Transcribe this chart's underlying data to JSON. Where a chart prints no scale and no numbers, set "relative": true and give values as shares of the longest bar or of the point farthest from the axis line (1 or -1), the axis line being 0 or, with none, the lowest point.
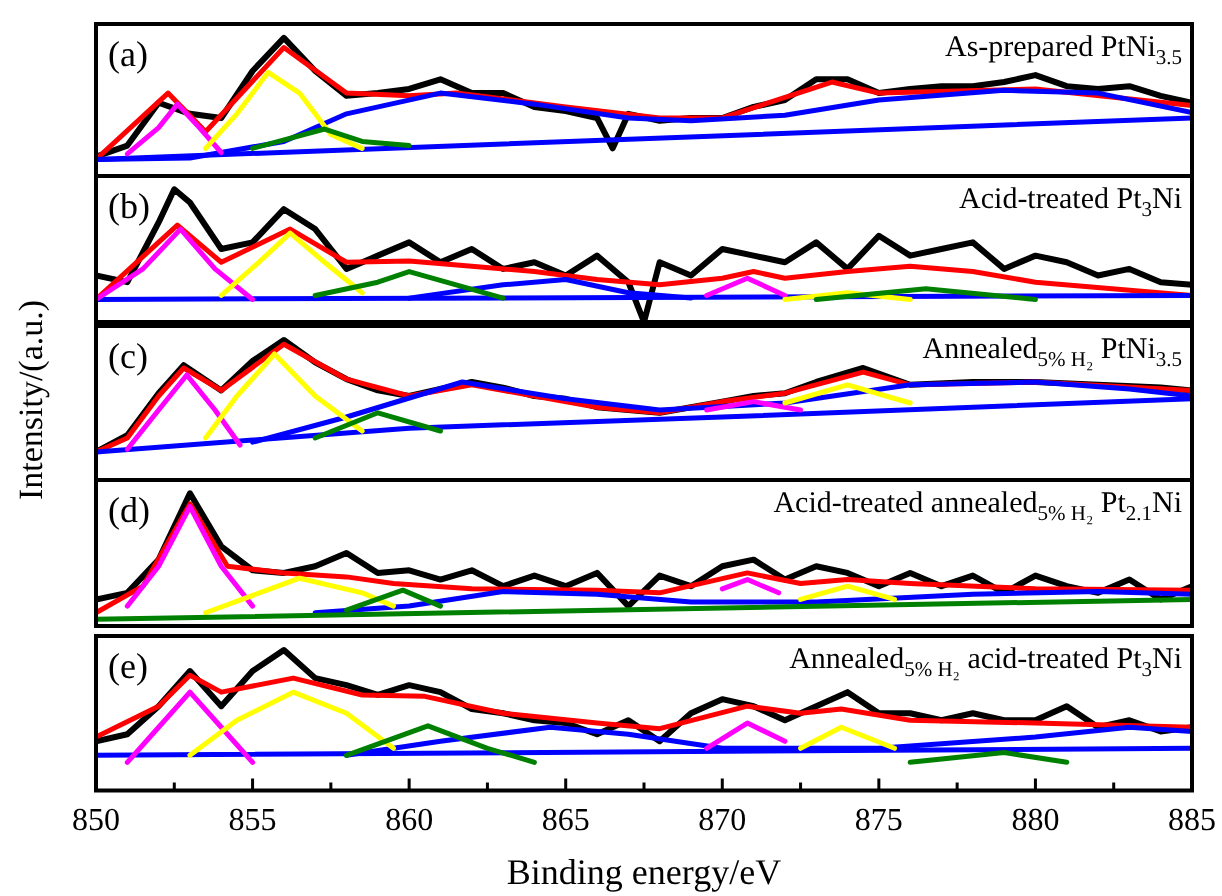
{
  "chart_data": [
    {
      "type": "line",
      "relative": true,
      "xlim": [
        850,
        885
      ],
      "tick_labels": false,
      "annotations": [
        "(a)",
        "As-prepared PtNi$_{3.5}$"
      ],
      "series": [
        {
          "color": "#000000",
          "x": [
            850,
            851,
            852,
            853,
            854,
            855,
            856,
            857,
            858,
            859,
            860,
            861,
            862,
            863,
            864,
            865,
            866,
            866.5,
            867,
            868,
            869,
            870,
            871,
            872,
            873,
            874,
            875,
            876,
            877,
            878,
            879,
            880,
            881,
            882,
            883,
            884,
            885
          ],
          "values": [
            0.14,
            0.22,
            0.53,
            0.45,
            0.42,
            0.76,
            1,
            0.76,
            0.58,
            0.6,
            0.63,
            0.7,
            0.6,
            0.6,
            0.5,
            0.47,
            0.42,
            0.2,
            0.45,
            0.4,
            0.42,
            0.42,
            0.5,
            0.55,
            0.7,
            0.7,
            0.6,
            0.63,
            0.65,
            0.65,
            0.68,
            0.73,
            0.65,
            0.63,
            0.65,
            0.58,
            0.53
          ]
        },
        {
          "color": "#ff0000",
          "x": [
            850,
            852.3,
            853.5,
            856,
            858,
            860,
            861.5,
            865,
            868,
            870,
            873.5,
            875,
            880,
            885
          ],
          "values": [
            0.12,
            0.6,
            0.32,
            0.93,
            0.6,
            0.58,
            0.6,
            0.5,
            0.42,
            0.42,
            0.68,
            0.6,
            0.63,
            0.51
          ]
        },
        {
          "color": "#0000ff",
          "x": [
            850,
            885
          ],
          "values": [
            0.12,
            0.42
          ]
        },
        {
          "color": "#0000ff",
          "x": [
            850,
            853,
            856,
            858,
            861,
            864,
            867,
            869,
            872,
            875,
            879,
            882,
            885
          ],
          "values": [
            0.12,
            0.13,
            0.25,
            0.45,
            0.6,
            0.52,
            0.42,
            0.4,
            0.44,
            0.55,
            0.62,
            0.6,
            0.46
          ]
        },
        {
          "color": "#ff00ff",
          "x": [
            851,
            852,
            852.6,
            853.3,
            854
          ],
          "values": [
            0.16,
            0.35,
            0.52,
            0.35,
            0.17
          ]
        },
        {
          "color": "#ffff00",
          "x": [
            853.5,
            854.5,
            855.5,
            856.5,
            857.5,
            858.5
          ],
          "values": [
            0.2,
            0.45,
            0.75,
            0.6,
            0.3,
            0.2
          ]
        },
        {
          "color": "#008000",
          "x": [
            855,
            857.3,
            858.5,
            860
          ],
          "values": [
            0.2,
            0.34,
            0.25,
            0.22
          ]
        }
      ]
    },
    {
      "type": "line",
      "relative": true,
      "xlim": [
        850,
        885
      ],
      "tick_labels": false,
      "annotations": [
        "(b)",
        "Acid-treated Pt$_{3}$Ni"
      ],
      "series": [
        {
          "color": "#000000",
          "x": [
            850,
            851,
            852,
            852.5,
            853,
            854,
            855,
            856,
            857,
            858,
            859,
            860,
            861,
            862,
            863,
            864,
            865,
            866,
            867,
            867.5,
            868,
            869,
            870,
            871,
            872,
            873,
            874,
            875,
            876,
            877,
            878,
            879,
            880,
            881,
            882,
            883,
            884,
            885
          ],
          "values": [
            0.35,
            0.3,
            0.75,
            1,
            0.9,
            0.55,
            0.6,
            0.85,
            0.7,
            0.4,
            0.5,
            0.6,
            0.45,
            0.55,
            0.4,
            0.45,
            0.35,
            0.5,
            0.3,
            0,
            0.45,
            0.35,
            0.55,
            0.5,
            0.45,
            0.6,
            0.4,
            0.65,
            0.5,
            0.55,
            0.6,
            0.4,
            0.5,
            0.45,
            0.35,
            0.4,
            0.3,
            0.28
          ]
        },
        {
          "color": "#ff0000",
          "x": [
            850,
            852.6,
            854,
            856.2,
            858,
            860,
            862,
            864,
            866,
            868,
            870,
            871,
            872,
            874,
            876,
            878,
            880,
            885
          ],
          "values": [
            0.17,
            0.73,
            0.45,
            0.7,
            0.45,
            0.46,
            0.42,
            0.38,
            0.32,
            0.28,
            0.33,
            0.38,
            0.33,
            0.38,
            0.42,
            0.38,
            0.3,
            0.2
          ]
        },
        {
          "color": "#0000ff",
          "x": [
            850,
            885
          ],
          "values": [
            0.17,
            0.2
          ]
        },
        {
          "color": "#0000ff",
          "x": [
            860,
            863,
            865,
            867,
            869
          ],
          "values": [
            0.18,
            0.28,
            0.32,
            0.22,
            0.18
          ]
        },
        {
          "color": "#ff00ff",
          "x": [
            850,
            851.5,
            852.7,
            853.8,
            855
          ],
          "values": [
            0.17,
            0.4,
            0.7,
            0.4,
            0.17
          ]
        },
        {
          "color": "#ff00ff",
          "x": [
            869.5,
            870.8,
            872
          ],
          "values": [
            0.2,
            0.33,
            0.2
          ]
        },
        {
          "color": "#ffff00",
          "x": [
            854,
            855.2,
            856.2,
            857.3,
            858.5
          ],
          "values": [
            0.2,
            0.45,
            0.67,
            0.45,
            0.22
          ]
        },
        {
          "color": "#ffff00",
          "x": [
            872,
            874,
            876
          ],
          "values": [
            0.17,
            0.22,
            0.17
          ]
        },
        {
          "color": "#008000",
          "x": [
            857,
            859,
            860,
            861.5,
            863
          ],
          "values": [
            0.2,
            0.3,
            0.38,
            0.28,
            0.18
          ]
        },
        {
          "color": "#008000",
          "x": [
            873,
            876.5,
            880
          ],
          "values": [
            0.17,
            0.25,
            0.17
          ]
        }
      ]
    },
    {
      "type": "line",
      "relative": true,
      "xlim": [
        850,
        885
      ],
      "tick_labels": false,
      "ylabel": "Intensity/(a.u.)",
      "annotations": [
        "(c)",
        "Annealed$_{5% H₂}$ PtNi$_{3.5}$"
      ],
      "series": [
        {
          "color": "#000000",
          "x": [
            850,
            851,
            852,
            852.8,
            854,
            855,
            856,
            857,
            858,
            859,
            860,
            861,
            862,
            863,
            864,
            865,
            866,
            867,
            868,
            869,
            870,
            871,
            872,
            873,
            874.5,
            876,
            878,
            880,
            882,
            884,
            885
          ],
          "values": [
            0.2,
            0.32,
            0.62,
            0.82,
            0.64,
            0.85,
            1,
            0.84,
            0.72,
            0.64,
            0.6,
            0.65,
            0.7,
            0.66,
            0.6,
            0.58,
            0.52,
            0.5,
            0.48,
            0.52,
            0.56,
            0.6,
            0.62,
            0.7,
            0.8,
            0.68,
            0.7,
            0.7,
            0.68,
            0.66,
            0.64
          ]
        },
        {
          "color": "#ff0000",
          "x": [
            850,
            851,
            852,
            852.8,
            854,
            856,
            858,
            860,
            862,
            864,
            866,
            868,
            870,
            872,
            874.5,
            876,
            880,
            885
          ],
          "values": [
            0.2,
            0.3,
            0.6,
            0.8,
            0.64,
            0.97,
            0.72,
            0.6,
            0.68,
            0.6,
            0.52,
            0.48,
            0.56,
            0.62,
            0.77,
            0.68,
            0.7,
            0.64
          ]
        },
        {
          "color": "#0000ff",
          "x": [
            850,
            860,
            870,
            885
          ],
          "values": [
            0.2,
            0.37,
            0.45,
            0.58
          ]
        },
        {
          "color": "#0000ff",
          "x": [
            855,
            858,
            861.7,
            865,
            868,
            872,
            876,
            880,
            883,
            885
          ],
          "values": [
            0.27,
            0.45,
            0.7,
            0.58,
            0.5,
            0.55,
            0.68,
            0.7,
            0.65,
            0.6
          ]
        },
        {
          "color": "#ff00ff",
          "x": [
            851,
            852,
            852.9,
            853.8,
            854.6
          ],
          "values": [
            0.22,
            0.5,
            0.75,
            0.5,
            0.25
          ]
        },
        {
          "color": "#ff00ff",
          "x": [
            869.5,
            871,
            872.5
          ],
          "values": [
            0.5,
            0.56,
            0.5
          ]
        },
        {
          "color": "#ffff00",
          "x": [
            853.5,
            854.5,
            855.7,
            857,
            858.5
          ],
          "values": [
            0.3,
            0.6,
            0.9,
            0.6,
            0.35
          ]
        },
        {
          "color": "#ffff00",
          "x": [
            872,
            874,
            876
          ],
          "values": [
            0.55,
            0.68,
            0.55
          ]
        },
        {
          "color": "#008000",
          "x": [
            857,
            859,
            861
          ],
          "values": [
            0.3,
            0.48,
            0.35
          ]
        }
      ]
    },
    {
      "type": "line",
      "relative": true,
      "xlim": [
        850,
        885
      ],
      "tick_labels": false,
      "annotations": [
        "(d)",
        "Acid-treated annealed$_{5% H₂}$ Pt$_{2.1}$Ni"
      ],
      "series": [
        {
          "color": "#000000",
          "x": [
            850,
            851,
            852,
            853,
            854,
            855,
            856,
            857,
            858,
            859,
            860,
            861,
            862,
            863,
            864,
            865,
            866,
            867,
            868,
            869,
            870,
            871,
            872,
            873,
            874,
            875,
            876,
            877,
            878,
            879,
            880,
            881,
            882,
            883,
            884,
            885
          ],
          "values": [
            0.2,
            0.25,
            0.5,
            1,
            0.6,
            0.42,
            0.4,
            0.45,
            0.55,
            0.4,
            0.42,
            0.35,
            0.42,
            0.3,
            0.38,
            0.3,
            0.4,
            0.15,
            0.38,
            0.3,
            0.45,
            0.5,
            0.35,
            0.45,
            0.4,
            0.3,
            0.4,
            0.3,
            0.38,
            0.25,
            0.38,
            0.3,
            0.25,
            0.35,
            0.2,
            0.3
          ]
        },
        {
          "color": "#ff0000",
          "x": [
            850,
            851.5,
            853,
            854.2,
            856,
            858,
            859.5,
            862,
            866,
            868,
            870.8,
            872.5,
            874,
            876,
            880,
            885
          ],
          "values": [
            0.1,
            0.3,
            0.92,
            0.45,
            0.4,
            0.37,
            0.32,
            0.28,
            0.27,
            0.25,
            0.4,
            0.32,
            0.35,
            0.32,
            0.28,
            0.27
          ]
        },
        {
          "color": "#0000ff",
          "x": [
            857,
            860,
            863,
            866,
            869,
            873,
            878,
            882,
            885
          ],
          "values": [
            0.1,
            0.15,
            0.26,
            0.24,
            0.18,
            0.18,
            0.24,
            0.26,
            0.24
          ]
        },
        {
          "color": "#ff00ff",
          "x": [
            851,
            852,
            853,
            854,
            855
          ],
          "values": [
            0.15,
            0.45,
            0.9,
            0.45,
            0.15
          ]
        },
        {
          "color": "#ff00ff",
          "x": [
            870,
            870.8,
            871.8
          ],
          "values": [
            0.28,
            0.35,
            0.25
          ]
        },
        {
          "color": "#ffff00",
          "x": [
            853.5,
            856.5,
            858.5,
            859.5
          ],
          "values": [
            0.1,
            0.36,
            0.25,
            0.15
          ]
        },
        {
          "color": "#ffff00",
          "x": [
            872.5,
            874,
            875.5
          ],
          "values": [
            0.2,
            0.3,
            0.2
          ]
        },
        {
          "color": "#008000",
          "x": [
            850,
            885
          ],
          "values": [
            0.05,
            0.2
          ]
        },
        {
          "color": "#008000",
          "x": [
            858,
            859.8,
            861
          ],
          "values": [
            0.12,
            0.27,
            0.15
          ]
        }
      ]
    },
    {
      "type": "line",
      "relative": true,
      "xlim": [
        850,
        885
      ],
      "xticks": [
        850,
        {
          "value": 852.5,
          "label": null
        },
        855,
        {
          "value": 857.5,
          "label": null
        },
        860,
        {
          "value": 862.5,
          "label": null
        },
        865,
        {
          "value": 867.5,
          "label": null
        },
        870,
        {
          "value": 872.5,
          "label": null
        },
        875,
        {
          "value": 877.5,
          "label": null
        },
        880,
        {
          "value": 882.5,
          "label": null
        },
        885
      ],
      "tick_labels": "x",
      "xlabel": "Binding energy/eV",
      "annotations": [
        "(e)",
        "Annealed$_{5% H₂}$ acid-treated Pt$_{3}$Ni"
      ],
      "series": [
        {
          "color": "#000000",
          "x": [
            850,
            851,
            852,
            853,
            854,
            855,
            856,
            857,
            858,
            859,
            860,
            861,
            862,
            863,
            864,
            865,
            866,
            867,
            868,
            869,
            870,
            871,
            872,
            873,
            874,
            875,
            876,
            877,
            878,
            879,
            880,
            881,
            882,
            883,
            884,
            885
          ],
          "values": [
            0.35,
            0.4,
            0.6,
            0.85,
            0.6,
            0.85,
            1,
            0.8,
            0.75,
            0.68,
            0.75,
            0.7,
            0.58,
            0.55,
            0.5,
            0.48,
            0.4,
            0.5,
            0.35,
            0.55,
            0.65,
            0.6,
            0.5,
            0.6,
            0.7,
            0.55,
            0.55,
            0.5,
            0.55,
            0.5,
            0.5,
            0.6,
            0.45,
            0.5,
            0.42,
            0.45
          ]
        },
        {
          "color": "#ff0000",
          "x": [
            850,
            852,
            853,
            854,
            856.3,
            858.5,
            860.5,
            863,
            866,
            868,
            870.8,
            872.5,
            873.8,
            876,
            880,
            885
          ],
          "values": [
            0.38,
            0.6,
            0.82,
            0.7,
            0.8,
            0.68,
            0.67,
            0.55,
            0.48,
            0.44,
            0.6,
            0.55,
            0.58,
            0.5,
            0.48,
            0.45
          ]
        },
        {
          "color": "#0000ff",
          "x": [
            850,
            885
          ],
          "values": [
            0.25,
            0.3
          ]
        },
        {
          "color": "#0000ff",
          "x": [
            858,
            861,
            864.5,
            867,
            870,
            875,
            880,
            883,
            885
          ],
          "values": [
            0.25,
            0.35,
            0.45,
            0.4,
            0.3,
            0.3,
            0.38,
            0.45,
            0.42
          ]
        },
        {
          "color": "#ff00ff",
          "x": [
            851,
            852,
            853,
            854,
            855
          ],
          "values": [
            0.2,
            0.45,
            0.7,
            0.45,
            0.2
          ]
        },
        {
          "color": "#ff00ff",
          "x": [
            869.5,
            870.8,
            872
          ],
          "values": [
            0.3,
            0.48,
            0.35
          ]
        },
        {
          "color": "#ffff00",
          "x": [
            853,
            854.5,
            856.3,
            858,
            859.5
          ],
          "values": [
            0.25,
            0.5,
            0.7,
            0.55,
            0.3
          ]
        },
        {
          "color": "#ffff00",
          "x": [
            872.5,
            873.8,
            875.5
          ],
          "values": [
            0.3,
            0.45,
            0.3
          ]
        },
        {
          "color": "#008000",
          "x": [
            858,
            860.6,
            862.5,
            864
          ],
          "values": [
            0.25,
            0.46,
            0.3,
            0.2
          ]
        },
        {
          "color": "#008000",
          "x": [
            876,
            879,
            881
          ],
          "values": [
            0.2,
            0.27,
            0.2
          ]
        }
      ]
    }
  ]
}
